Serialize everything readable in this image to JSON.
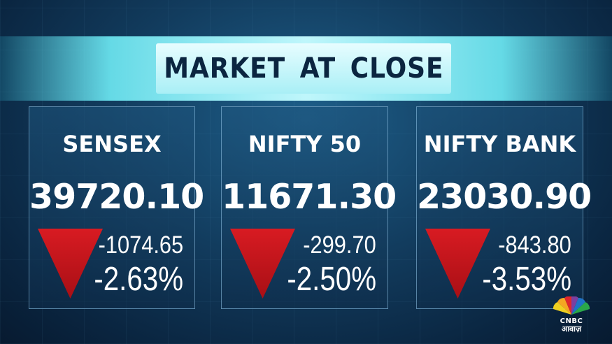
{
  "title": "MARKET AT CLOSE",
  "panels": [
    {
      "name": "SENSEX",
      "value": "39720.10",
      "change": "-1074.65",
      "percent": "-2.63%",
      "direction": "down"
    },
    {
      "name": "NIFTY 50",
      "value": "11671.30",
      "change": "-299.70",
      "percent": "-2.50%",
      "direction": "down"
    },
    {
      "name": "NIFTY BANK",
      "value": "23030.90",
      "change": "-843.80",
      "percent": "-3.53%",
      "direction": "down"
    }
  ],
  "logo": {
    "brand": "CNBC",
    "subtitle": "आवाज़"
  },
  "colors": {
    "down_arrow": "#c8151c",
    "banner_text": "#0b2540",
    "banner_bg": "#bff6fb"
  }
}
